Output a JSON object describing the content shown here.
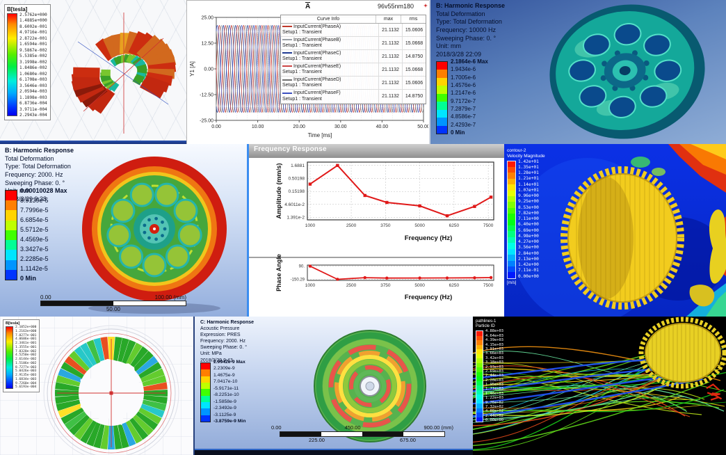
{
  "panels": {
    "maxwell_toroid": {
      "legend_title": "B[tesla]",
      "legend_values": [
        "2.5762e+000",
        "1.4885e+000",
        "8.6002e-001",
        "4.9716e-001",
        "2.8722e-001",
        "1.6594e-001",
        "9.5867e-002",
        "5.5385e-002",
        "3.1998e-002",
        "1.8486e-002",
        "1.0680e-002",
        "6.1708e-003",
        "3.5646e-003",
        "2.0594e-003",
        "1.1898e-003",
        "6.8736e-004",
        "3.9711e-004",
        "2.2943e-004"
      ]
    },
    "current_plot": {
      "corner_label": "A",
      "title": "96v55nm180"
    },
    "harmonic_top": {
      "info_lines": [
        "B: Harmonic Response",
        "Total Deformation",
        "Type: Total Deformation",
        "Frequency: 10000 Hz",
        "Sweeping Phase: 0. °",
        "Unit: mm",
        "2018/3/28 22:09"
      ],
      "legend_values": [
        "2.1864e-6 Max",
        "1.9434e-6",
        "1.7005e-6",
        "1.4576e-6",
        "1.2147e-6",
        "9.7172e-7",
        "7.2879e-7",
        "4.8586e-7",
        "2.4293e-7",
        "0 Min"
      ]
    },
    "harmonic_wheel": {
      "info_lines": [
        "B: Harmonic Response",
        "Total Deformation",
        "Type: Total Deformation",
        "Frequency: 2000. Hz",
        "Sweeping Phase: 0. °",
        "Unit: mm",
        "2018/3/29 9:38"
      ],
      "legend_values": [
        "0.00010028 Max",
        "8.9139e-5",
        "7.7996e-5",
        "6.6854e-5",
        "5.5712e-5",
        "4.4569e-5",
        "3.3427e-5",
        "2.2285e-5",
        "1.1142e-5",
        "0 Min"
      ],
      "scale_bar": {
        "left": "0.00",
        "right": "100.00 (mm)",
        "center": "50.00"
      }
    },
    "freq_window": {
      "title": "Frequency Response"
    },
    "velocity_contour": {
      "legend_title_lines": [
        "contour-2",
        "Velocity Magnitude"
      ],
      "legend_values": [
        "1.42e+01",
        "1.35e+01",
        "1.28e+01",
        "1.21e+01",
        "1.14e+01",
        "1.07e+01",
        "9.96e+00",
        "9.25e+00",
        "8.53e+00",
        "7.82e+00",
        "7.11e+00",
        "6.40e+00",
        "5.69e+00",
        "4.98e+00",
        "4.27e+00",
        "3.56e+00",
        "2.84e+00",
        "2.13e+00",
        "1.42e+00",
        "7.11e-01",
        "0.00e+00"
      ],
      "unit": "[m/s]"
    },
    "stator_field": {
      "legend_title": "B[tesla]",
      "legend_values": [
        "2.1052e+000",
        "1.2163e+000",
        "7.0277e-001",
        "4.0606e-001",
        "2.3461e-001",
        "1.3555e-001",
        "7.8320e-002",
        "4.5250e-002",
        "2.6144e-002",
        "1.5106e-002",
        "8.7277e-003",
        "5.0426e-003",
        "2.9135e-003",
        "1.6834e-003",
        "9.7260e-004",
        "5.6193e-004"
      ]
    },
    "acoustic": {
      "info_lines": [
        "C: Harmonic Response",
        "Acoustic Pressure",
        "Expression: PRES",
        "Frequency: 2000. Hz",
        "Sweeping Phase: 0. °",
        "Unit: MPa",
        "2018/3/29 9:43"
      ],
      "legend_values": [
        "2.9942e-9 Max",
        "2.2309e-9",
        "1.4675e-9",
        "7.0417e-10",
        "-5.9171e-11",
        "-8.2251e-10",
        "-1.5858e-9",
        "-2.3492e-9",
        "-3.1125e-9",
        "-3.8759e-9 Min"
      ],
      "ruler": {
        "top": [
          "0.00",
          "450.00",
          "900.00 (mm)"
        ],
        "bottom": [
          "225.00",
          "675.00"
        ]
      }
    },
    "pathlines": {
      "legend_title_lines": [
        "pathlines-1",
        "Particle ID"
      ],
      "legend_values": [
        "4.88e+03",
        "4.64e+03",
        "4.39e+03",
        "4.15e+03",
        "3.91e+03",
        "3.66e+03",
        "3.42e+03",
        "3.18e+03",
        "2.93e+03",
        "2.69e+03",
        "2.44e+03",
        "2.20e+03",
        "1.95e+03",
        "1.71e+03",
        "1.46e+03",
        "1.22e+03",
        "9.76e+02",
        "7.32e+02",
        "4.88e+02",
        "2.44e+02",
        "0.00e+00"
      ]
    }
  },
  "colors": {
    "ansys_bands": [
      "#ff0000",
      "#ff7f00",
      "#ffd400",
      "#bfff00",
      "#40ff00",
      "#00ff95",
      "#00e5ff",
      "#0095ff",
      "#0033ff"
    ],
    "accent_border": "#3b8df0",
    "curve_red": "#e01818"
  },
  "chart_data": [
    {
      "id": "input-currents",
      "type": "line",
      "title": "96v55nm180",
      "xlabel": "Time [ms]",
      "ylabel": "Y1 [A]",
      "xlim": [
        0,
        50
      ],
      "ylim": [
        -25,
        25
      ],
      "x_ticks": [
        "0.00",
        "10.00",
        "20.00",
        "30.00",
        "40.00",
        "50.00"
      ],
      "y_ticks": [
        "25.00",
        "12.50",
        "0.00",
        "-12.50",
        "-25.00"
      ],
      "waveform": {
        "amplitude": 21.1132,
        "period_ms": 2.9412
      },
      "legend_headers": [
        "Curve Info",
        "max",
        "rms"
      ],
      "series": [
        {
          "name": "InputCurrent(PhaseA)",
          "setup": "Setup1 : Transient",
          "max": "21.1132",
          "rms": "15.0606",
          "color": "#c0392b",
          "phase_deg": 0
        },
        {
          "name": "InputCurrent(PhaseB)",
          "setup": "Setup1 : Transient",
          "max": "21.1132",
          "rms": "15.0668",
          "color": "#9aa0a6",
          "phase_deg": -60
        },
        {
          "name": "InputCurrent(PhaseC)",
          "setup": "Setup1 : Transient",
          "max": "21.1132",
          "rms": "14.8750",
          "color": "#1f3a93",
          "phase_deg": -120
        },
        {
          "name": "InputCurrent(PhaseE)",
          "setup": "Setup1 : Transient",
          "max": "21.1132",
          "rms": "15.0668",
          "color": "#cc4444",
          "phase_deg": -180
        },
        {
          "name": "InputCurrent(PhaseD)",
          "setup": "Setup1 : Transient",
          "max": "21.1132",
          "rms": "15.0606",
          "color": "#707070",
          "phase_deg": -240
        },
        {
          "name": "InputCurrent(PhaseF)",
          "setup": "Setup1 : Transient",
          "max": "21.1132",
          "rms": "14.8750",
          "color": "#3b4fc0",
          "phase_deg": -300
        }
      ]
    },
    {
      "id": "amplitude-response",
      "type": "line",
      "y_scale": "log",
      "xlabel": "Frequency (Hz)",
      "ylabel": "Amplitude (mm/s)",
      "xlim": [
        900,
        7700
      ],
      "x": [
        1000,
        2000,
        3000,
        3800,
        5000,
        6000,
        7000,
        7600
      ],
      "y": [
        0.3,
        1.6881,
        0.105,
        0.055,
        0.04,
        0.016,
        0.038,
        0.09
      ],
      "x_ticks": [
        "1000",
        "2500",
        "3750",
        "5000",
        "6250",
        "7500"
      ],
      "y_ticks": [
        "1.6881",
        "0.50198",
        "0.15198",
        "4.6011e-2",
        "1.391e-2"
      ],
      "color": "#e01818"
    },
    {
      "id": "phase-response",
      "type": "line",
      "xlabel": "Frequency (Hz)",
      "ylabel": "Phase Angle",
      "xlim": [
        900,
        7700
      ],
      "ylim": [
        -170,
        110
      ],
      "x": [
        1000,
        2000,
        3000,
        3800,
        5000,
        6000,
        7000,
        7600
      ],
      "y": [
        90,
        -150.29,
        -120,
        -128,
        -127,
        -126,
        -123,
        -119
      ],
      "x_ticks": [
        "1000",
        "2500",
        "3750",
        "5000",
        "6250",
        "7500"
      ],
      "y_ticks": [
        "90.",
        "-150.29"
      ],
      "color": "#e01818"
    }
  ]
}
